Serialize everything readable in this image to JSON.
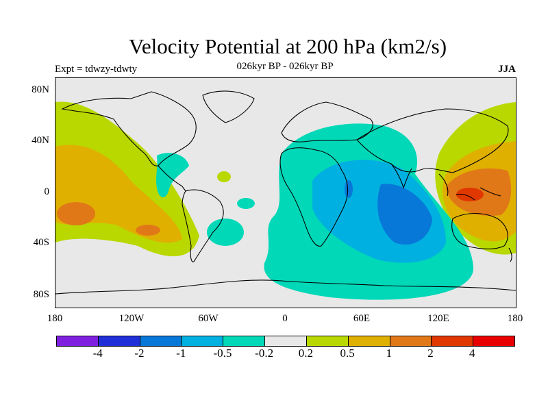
{
  "title": "Velocity Potential at 200 hPa (km2/s)",
  "subtitle": "026kyr BP - 026kyr BP",
  "left_label": "Expt = tdwzy-tdwty",
  "right_label": "JJA",
  "lat_ticks": [
    "80N",
    "40N",
    "0",
    "40S",
    "80S"
  ],
  "lon_ticks": [
    "180",
    "120W",
    "60W",
    "0",
    "60E",
    "120E",
    "180"
  ],
  "colorbar": {
    "colors": [
      "#7f20e0",
      "#2030d8",
      "#0878d8",
      "#00b0e0",
      "#00d8b8",
      "#e8e8e8",
      "#b8d800",
      "#e0b000",
      "#e07818",
      "#e03800",
      "#e80000"
    ],
    "labels": [
      "-4",
      "-2",
      "-1",
      "-0.5",
      "-0.2",
      "0.2",
      "0.5",
      "1",
      "2",
      "4"
    ]
  }
}
